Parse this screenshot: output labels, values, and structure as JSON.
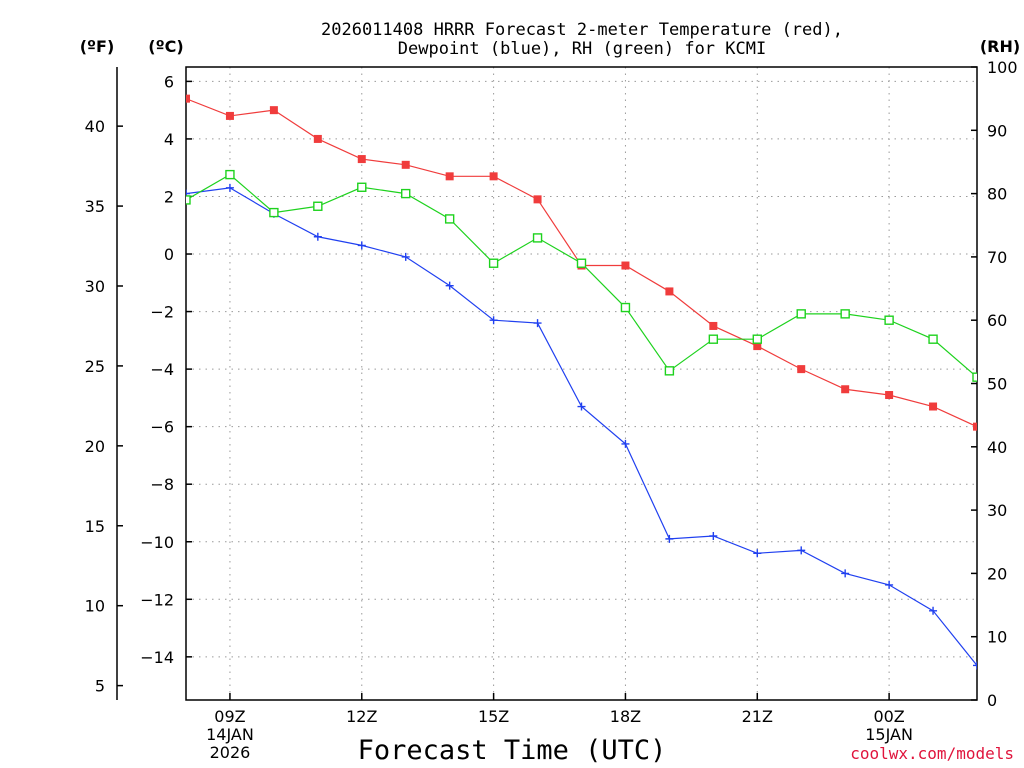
{
  "chart_data": {
    "type": "line",
    "title": [
      "2026011408 HRRR Forecast 2-meter Temperature (red),",
      "Dewpoint (blue), RH (green) for KCMI"
    ],
    "xlabel": "Forecast Time (UTC)",
    "credit": "coolwx.com/models",
    "units": {
      "fahrenheit": "(ºF)",
      "celsius": "(ºC)",
      "rh": "(RH)"
    },
    "x_hours": [
      8,
      9,
      10,
      11,
      12,
      13,
      14,
      15,
      16,
      17,
      18,
      19,
      20,
      21,
      22,
      23,
      24,
      25,
      26
    ],
    "x_range": [
      8,
      26
    ],
    "x_ticks": [
      {
        "hour": 9,
        "lines": [
          "09Z",
          "14JAN",
          "2026"
        ]
      },
      {
        "hour": 12,
        "lines": [
          "12Z"
        ]
      },
      {
        "hour": 15,
        "lines": [
          "15Z"
        ]
      },
      {
        "hour": 18,
        "lines": [
          "18Z"
        ]
      },
      {
        "hour": 21,
        "lines": [
          "21Z"
        ]
      },
      {
        "hour": 24,
        "lines": [
          "00Z",
          "15JAN"
        ]
      }
    ],
    "y_left_celsius": {
      "range": [
        -15.5,
        6.5
      ],
      "ticks": [
        "6",
        "4",
        "2",
        "0",
        "−2",
        "−4",
        "−6",
        "−8",
        "−10",
        "−12",
        "−14"
      ],
      "tick_values": [
        6,
        4,
        2,
        0,
        -2,
        -4,
        -6,
        -8,
        -10,
        -12,
        -14
      ]
    },
    "y_fahrenheit": {
      "ticks": [
        "40",
        "35",
        "30",
        "25",
        "20",
        "15",
        "10",
        "5"
      ],
      "tick_values": [
        40,
        35,
        30,
        25,
        20,
        15,
        10,
        5
      ]
    },
    "y_right_rh": {
      "range": [
        0,
        100
      ],
      "ticks": [
        "100",
        "90",
        "80",
        "70",
        "60",
        "50",
        "40",
        "30",
        "20",
        "10",
        "0"
      ],
      "tick_values": [
        100,
        90,
        80,
        70,
        60,
        50,
        40,
        30,
        20,
        10,
        0
      ]
    },
    "series": [
      {
        "name": "Temperature",
        "axis": "celsius",
        "color": "#f03c3c",
        "marker": "filled-square",
        "values": [
          5.4,
          4.8,
          5.0,
          4.0,
          3.3,
          3.1,
          2.7,
          2.7,
          1.9,
          -0.4,
          -0.4,
          -1.3,
          -2.5,
          -3.2,
          -4.0,
          -4.7,
          -4.9,
          -5.3,
          -6.0
        ]
      },
      {
        "name": "Dewpoint",
        "axis": "celsius",
        "color": "#2040f0",
        "marker": "plus",
        "values": [
          2.1,
          2.3,
          1.4,
          0.6,
          0.3,
          -0.1,
          -1.1,
          -2.3,
          -2.4,
          -5.3,
          -6.6,
          -9.9,
          -9.8,
          -10.4,
          -10.3,
          -11.1,
          -11.5,
          -12.4,
          -14.3
        ]
      },
      {
        "name": "RH",
        "axis": "rh",
        "color": "#1ed21e",
        "marker": "open-square",
        "values": [
          79,
          83,
          77,
          78,
          81,
          80,
          76,
          69,
          73,
          69,
          62,
          52,
          57,
          57,
          61,
          61,
          60,
          57,
          51
        ]
      }
    ]
  }
}
